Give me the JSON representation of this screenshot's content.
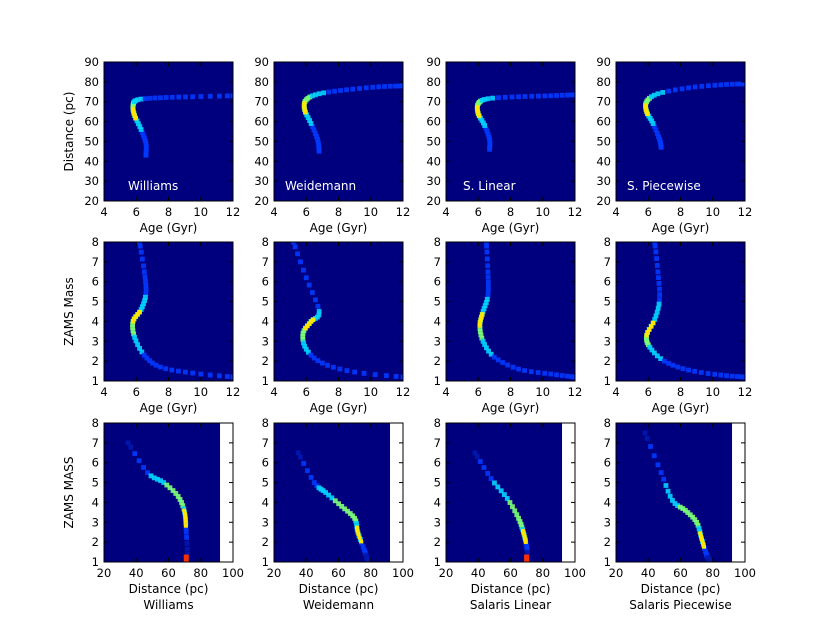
{
  "colors": {
    "background": "#00007f",
    "ridge_low": "#0038ff",
    "ridge_mid": "#00d4ff",
    "ridge_high": "#7cff79",
    "peak": "#ffe600",
    "hot": "#ff3000",
    "empty": "#ffffff"
  },
  "column_labels": [
    "Williams",
    "Weidemann",
    "Salaris Linear",
    "Salaris Piecewise"
  ],
  "chart_data": [
    {
      "type": "heatmap",
      "row": 1,
      "panel_labels": [
        "Williams",
        "Weidemann",
        "S. Linear",
        "S. Piecewise"
      ],
      "xlabel": "Age (Gyr)",
      "ylabel": "Distance (pc)",
      "xlim": [
        4,
        12
      ],
      "ylim": [
        20,
        90
      ],
      "xticks": [
        "4",
        "6",
        "8",
        "10",
        "12"
      ],
      "yticks": [
        "20",
        "30",
        "40",
        "50",
        "60",
        "70",
        "80",
        "90"
      ],
      "ridges": [
        [
          [
            6.6,
            43
          ],
          [
            6.6,
            49
          ],
          [
            6.3,
            56
          ],
          [
            5.9,
            63
          ],
          [
            5.8,
            68
          ],
          [
            6.1,
            71
          ],
          [
            7.5,
            72
          ],
          [
            9.5,
            72.5
          ],
          [
            12,
            73
          ]
        ],
        [
          [
            6.8,
            45
          ],
          [
            6.7,
            51
          ],
          [
            6.3,
            59
          ],
          [
            5.9,
            66
          ],
          [
            6.0,
            71
          ],
          [
            6.8,
            74
          ],
          [
            8.5,
            76
          ],
          [
            10.5,
            77.5
          ],
          [
            12,
            78
          ]
        ],
        [
          [
            6.7,
            46
          ],
          [
            6.7,
            51
          ],
          [
            6.4,
            58
          ],
          [
            6.0,
            64
          ],
          [
            6.0,
            69
          ],
          [
            6.6,
            71.5
          ],
          [
            8.5,
            72.5
          ],
          [
            10.5,
            73
          ],
          [
            12,
            73.5
          ]
        ],
        [
          [
            6.8,
            47
          ],
          [
            6.7,
            51
          ],
          [
            6.3,
            59
          ],
          [
            5.9,
            65
          ],
          [
            5.9,
            70
          ],
          [
            6.6,
            74
          ],
          [
            8.5,
            77
          ],
          [
            10.5,
            78.5
          ],
          [
            12,
            79
          ]
        ]
      ]
    },
    {
      "type": "heatmap",
      "row": 2,
      "xlabel": "Age (Gyr)",
      "ylabel": "ZAMS Mass",
      "xlim": [
        4,
        12
      ],
      "ylim": [
        1,
        8
      ],
      "xticks": [
        "4",
        "6",
        "8",
        "10",
        "12"
      ],
      "yticks": [
        "1",
        "2",
        "3",
        "4",
        "5",
        "6",
        "7",
        "8"
      ],
      "ridges": [
        [
          [
            6.2,
            8
          ],
          [
            6.5,
            6.5
          ],
          [
            6.6,
            5.4
          ],
          [
            6.3,
            4.6
          ],
          [
            5.8,
            4.0
          ],
          [
            5.9,
            3.2
          ],
          [
            6.5,
            2.3
          ],
          [
            7.5,
            1.7
          ],
          [
            9.5,
            1.4
          ],
          [
            12,
            1.2
          ]
        ],
        [
          [
            5.2,
            8
          ],
          [
            6.0,
            6.2
          ],
          [
            6.8,
            4.5
          ],
          [
            6.3,
            4.0
          ],
          [
            5.8,
            3.4
          ],
          [
            6.0,
            2.6
          ],
          [
            7.0,
            1.9
          ],
          [
            9.0,
            1.45
          ],
          [
            12,
            1.2
          ]
        ],
        [
          [
            6.5,
            8
          ],
          [
            6.6,
            6.5
          ],
          [
            6.6,
            5.3
          ],
          [
            6.3,
            4.5
          ],
          [
            6.1,
            3.8
          ],
          [
            6.3,
            3.0
          ],
          [
            7.0,
            2.2
          ],
          [
            8.5,
            1.6
          ],
          [
            10.5,
            1.35
          ],
          [
            12,
            1.2
          ]
        ],
        [
          [
            6.4,
            8
          ],
          [
            6.6,
            6.5
          ],
          [
            6.7,
            5.1
          ],
          [
            6.4,
            4.1
          ],
          [
            5.9,
            3.3
          ],
          [
            6.1,
            2.7
          ],
          [
            7.0,
            2.0
          ],
          [
            8.5,
            1.55
          ],
          [
            10.5,
            1.3
          ],
          [
            12,
            1.2
          ]
        ]
      ]
    },
    {
      "type": "heatmap",
      "row": 3,
      "panel_labels": [
        "Williams",
        "Weidemann",
        "Salaris Linear",
        "Salaris Piecewise"
      ],
      "xlabel": "Distance (pc)",
      "ylabel": "ZAMS MASS",
      "xlim": [
        20,
        100
      ],
      "ylim": [
        1,
        8
      ],
      "data_xmax": 92,
      "xticks": [
        "20",
        "40",
        "60",
        "80",
        "100"
      ],
      "yticks": [
        "1",
        "2",
        "3",
        "4",
        "5",
        "6",
        "7",
        "8"
      ],
      "ridges": [
        [
          [
            35,
            7.0
          ],
          [
            47,
            5.5
          ],
          [
            57,
            5.0
          ],
          [
            66,
            4.3
          ],
          [
            70,
            3.5
          ],
          [
            71,
            2.5
          ],
          [
            72,
            1.2
          ]
        ],
        [
          [
            35,
            6.5
          ],
          [
            45,
            5.0
          ],
          [
            52,
            4.5
          ],
          [
            62,
            3.8
          ],
          [
            70,
            3.2
          ],
          [
            72,
            2.5
          ],
          [
            76,
            1.6
          ],
          [
            78,
            1.1
          ]
        ],
        [
          [
            38,
            6.5
          ],
          [
            48,
            5.2
          ],
          [
            58,
            4.2
          ],
          [
            65,
            3.2
          ],
          [
            68,
            2.5
          ],
          [
            70,
            1.8
          ],
          [
            71,
            1.1
          ]
        ],
        [
          [
            38,
            7.5
          ],
          [
            48,
            5.5
          ],
          [
            55,
            4.1
          ],
          [
            63,
            3.6
          ],
          [
            70,
            3.0
          ],
          [
            73,
            2.2
          ],
          [
            76,
            1.4
          ],
          [
            78,
            1.1
          ]
        ]
      ],
      "hotspots": [
        [
          71,
          1.2
        ],
        null,
        [
          70,
          1.2
        ],
        null
      ]
    }
  ]
}
